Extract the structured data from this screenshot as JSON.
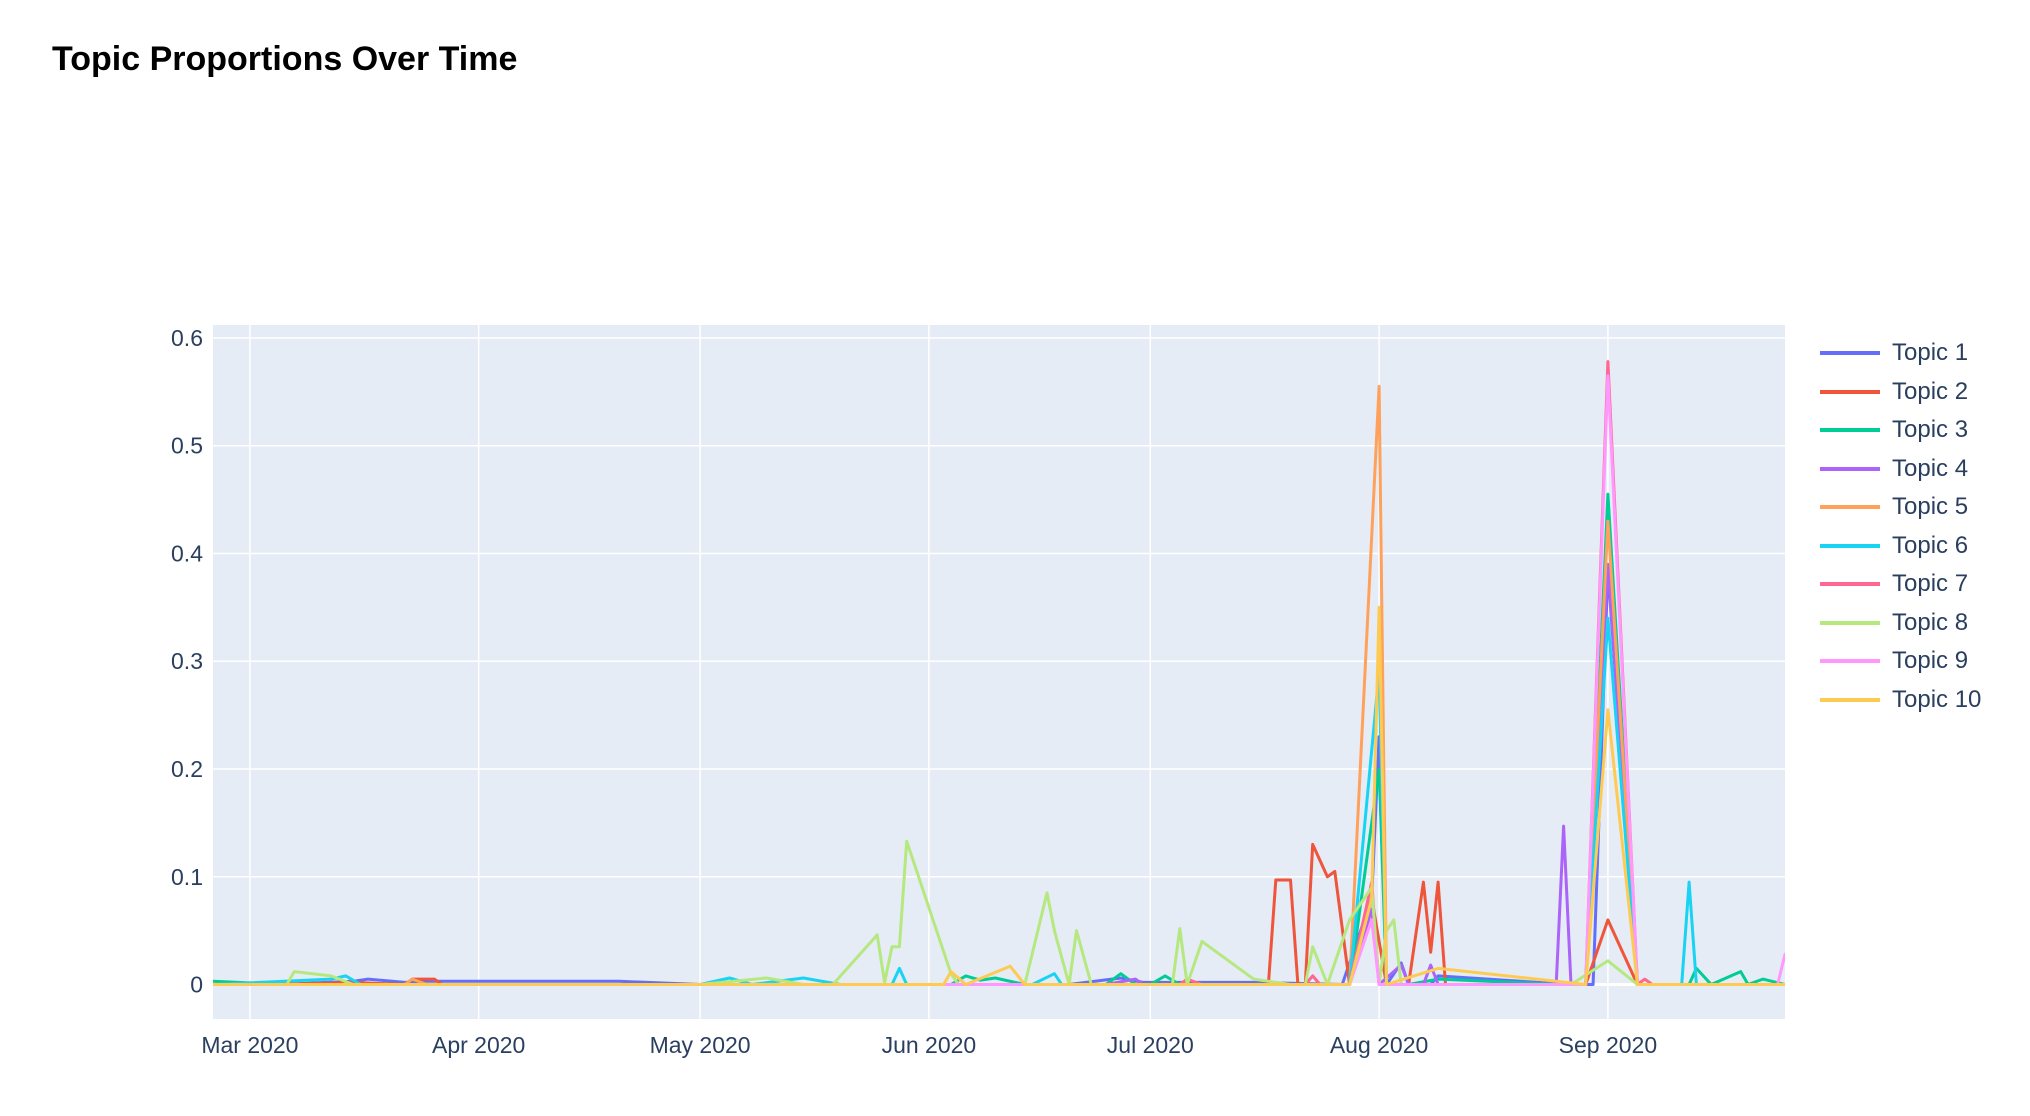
{
  "chart_data": {
    "type": "line",
    "title": "Topic Proportions Over Time",
    "xlabel": "",
    "ylabel": "",
    "xlim": [
      "2020-02-25",
      "2020-09-25"
    ],
    "ylim": [
      -0.032,
      0.612
    ],
    "x_ticks": [
      {
        "date": "2020-03-01",
        "label": "Mar 2020"
      },
      {
        "date": "2020-04-01",
        "label": "Apr 2020"
      },
      {
        "date": "2020-05-01",
        "label": "May 2020"
      },
      {
        "date": "2020-06-01",
        "label": "Jun 2020"
      },
      {
        "date": "2020-07-01",
        "label": "Jul 2020"
      },
      {
        "date": "2020-08-01",
        "label": "Aug 2020"
      },
      {
        "date": "2020-09-01",
        "label": "Sep 2020"
      }
    ],
    "y_ticks": [
      0,
      0.1,
      0.2,
      0.3,
      0.4,
      0.5,
      0.6
    ],
    "y_tick_labels": [
      "0",
      "0.1",
      "0.2",
      "0.3",
      "0.4",
      "0.5",
      "0.6"
    ],
    "grid": true,
    "legend_position": "right",
    "plot_bgcolor": "#E5ECF6",
    "series": [
      {
        "name": "Topic 1",
        "color": "#636EFA",
        "points": [
          [
            "2020-02-25",
            0.0
          ],
          [
            "2020-03-05",
            0.0
          ],
          [
            "2020-03-15",
            0.003
          ],
          [
            "2020-03-17",
            0.005
          ],
          [
            "2020-03-22",
            0.002
          ],
          [
            "2020-03-25",
            0.003
          ],
          [
            "2020-04-20",
            0.003
          ],
          [
            "2020-05-01",
            0.0
          ],
          [
            "2020-06-04",
            0.0
          ],
          [
            "2020-06-20",
            0.0
          ],
          [
            "2020-06-27",
            0.006
          ],
          [
            "2020-06-30",
            0.002
          ],
          [
            "2020-07-15",
            0.002
          ],
          [
            "2020-07-27",
            0.0
          ],
          [
            "2020-07-31",
            0.08
          ],
          [
            "2020-08-01",
            0.23
          ],
          [
            "2020-08-02",
            0.0
          ],
          [
            "2020-08-04",
            0.02
          ],
          [
            "2020-08-05",
            0.0
          ],
          [
            "2020-08-08",
            0.0
          ],
          [
            "2020-08-09",
            0.008
          ],
          [
            "2020-08-27",
            0.0
          ],
          [
            "2020-08-30",
            0.0
          ],
          [
            "2020-09-01",
            0.385
          ],
          [
            "2020-09-05",
            0.0
          ],
          [
            "2020-09-25",
            0.0
          ]
        ]
      },
      {
        "name": "Topic 2",
        "color": "#EF553B",
        "points": [
          [
            "2020-02-25",
            0.0
          ],
          [
            "2020-03-05",
            0.0
          ],
          [
            "2020-03-15",
            0.002
          ],
          [
            "2020-03-22",
            0.0
          ],
          [
            "2020-03-23",
            0.005
          ],
          [
            "2020-03-26",
            0.005
          ],
          [
            "2020-03-27",
            0.0
          ],
          [
            "2020-06-30",
            0.0
          ],
          [
            "2020-07-17",
            0.0
          ],
          [
            "2020-07-18",
            0.097
          ],
          [
            "2020-07-20",
            0.097
          ],
          [
            "2020-07-21",
            0.0
          ],
          [
            "2020-07-22",
            0.0
          ],
          [
            "2020-07-23",
            0.13
          ],
          [
            "2020-07-25",
            0.1
          ],
          [
            "2020-07-26",
            0.105
          ],
          [
            "2020-07-28",
            0.0
          ],
          [
            "2020-07-31",
            0.08
          ],
          [
            "2020-08-02",
            0.0
          ],
          [
            "2020-08-05",
            0.0
          ],
          [
            "2020-08-07",
            0.095
          ],
          [
            "2020-08-08",
            0.03
          ],
          [
            "2020-08-09",
            0.095
          ],
          [
            "2020-08-10",
            0.0
          ],
          [
            "2020-08-27",
            0.0
          ],
          [
            "2020-08-29",
            0.0
          ],
          [
            "2020-09-01",
            0.06
          ],
          [
            "2020-09-05",
            0.0
          ],
          [
            "2020-09-25",
            0.0
          ]
        ]
      },
      {
        "name": "Topic 3",
        "color": "#00CC96",
        "points": [
          [
            "2020-02-25",
            0.003
          ],
          [
            "2020-03-06",
            0.0
          ],
          [
            "2020-05-01",
            0.0
          ],
          [
            "2020-06-04",
            0.0
          ],
          [
            "2020-06-06",
            0.008
          ],
          [
            "2020-06-08",
            0.004
          ],
          [
            "2020-06-10",
            0.006
          ],
          [
            "2020-06-14",
            0.0
          ],
          [
            "2020-06-25",
            0.0
          ],
          [
            "2020-06-27",
            0.01
          ],
          [
            "2020-06-29",
            0.0
          ],
          [
            "2020-07-01",
            0.0
          ],
          [
            "2020-07-03",
            0.008
          ],
          [
            "2020-07-05",
            0.0
          ],
          [
            "2020-07-28",
            0.0
          ],
          [
            "2020-08-01",
            0.2
          ],
          [
            "2020-08-02",
            0.0
          ],
          [
            "2020-08-05",
            0.0
          ],
          [
            "2020-08-09",
            0.005
          ],
          [
            "2020-08-26",
            0.0
          ],
          [
            "2020-08-29",
            0.0
          ],
          [
            "2020-09-01",
            0.455
          ],
          [
            "2020-09-05",
            0.0
          ],
          [
            "2020-09-12",
            0.0
          ],
          [
            "2020-09-13",
            0.015
          ],
          [
            "2020-09-15",
            0.0
          ],
          [
            "2020-09-19",
            0.012
          ],
          [
            "2020-09-20",
            0.0
          ],
          [
            "2020-09-22",
            0.005
          ],
          [
            "2020-09-25",
            0.0
          ]
        ]
      },
      {
        "name": "Topic 4",
        "color": "#AB63FA",
        "points": [
          [
            "2020-02-25",
            0.0
          ],
          [
            "2020-06-25",
            0.0
          ],
          [
            "2020-06-29",
            0.005
          ],
          [
            "2020-06-30",
            0.0
          ],
          [
            "2020-07-28",
            0.0
          ],
          [
            "2020-07-31",
            0.07
          ],
          [
            "2020-08-01",
            0.0
          ],
          [
            "2020-08-04",
            0.018
          ],
          [
            "2020-08-05",
            0.0
          ],
          [
            "2020-08-07",
            0.0
          ],
          [
            "2020-08-08",
            0.018
          ],
          [
            "2020-08-09",
            0.0
          ],
          [
            "2020-08-25",
            0.0
          ],
          [
            "2020-08-26",
            0.147
          ],
          [
            "2020-08-27",
            0.0
          ],
          [
            "2020-08-29",
            0.0
          ],
          [
            "2020-09-01",
            0.39
          ],
          [
            "2020-09-05",
            0.0
          ],
          [
            "2020-09-25",
            0.0
          ]
        ]
      },
      {
        "name": "Topic 5",
        "color": "#FFA15A",
        "points": [
          [
            "2020-02-25",
            0.0
          ],
          [
            "2020-03-22",
            0.0
          ],
          [
            "2020-03-23",
            0.005
          ],
          [
            "2020-03-25",
            0.0
          ],
          [
            "2020-07-28",
            0.0
          ],
          [
            "2020-08-01",
            0.555
          ],
          [
            "2020-08-02",
            0.0
          ],
          [
            "2020-08-29",
            0.0
          ],
          [
            "2020-09-01",
            0.43
          ],
          [
            "2020-09-05",
            0.0
          ],
          [
            "2020-09-25",
            0.0
          ]
        ]
      },
      {
        "name": "Topic 6",
        "color": "#19D3F3",
        "points": [
          [
            "2020-02-25",
            0.0
          ],
          [
            "2020-03-12",
            0.005
          ],
          [
            "2020-03-14",
            0.008
          ],
          [
            "2020-03-16",
            0.0
          ],
          [
            "2020-05-01",
            0.0
          ],
          [
            "2020-05-05",
            0.006
          ],
          [
            "2020-05-08",
            0.0
          ],
          [
            "2020-05-15",
            0.006
          ],
          [
            "2020-05-20",
            0.0
          ],
          [
            "2020-05-27",
            0.0
          ],
          [
            "2020-05-28",
            0.015
          ],
          [
            "2020-05-29",
            0.0
          ],
          [
            "2020-06-15",
            0.0
          ],
          [
            "2020-06-18",
            0.01
          ],
          [
            "2020-06-19",
            0.0
          ],
          [
            "2020-07-28",
            0.0
          ],
          [
            "2020-08-01",
            0.29
          ],
          [
            "2020-08-02",
            0.0
          ],
          [
            "2020-08-29",
            0.0
          ],
          [
            "2020-09-01",
            0.34
          ],
          [
            "2020-09-05",
            0.0
          ],
          [
            "2020-09-11",
            0.0
          ],
          [
            "2020-09-12",
            0.095
          ],
          [
            "2020-09-13",
            0.0
          ],
          [
            "2020-09-25",
            0.0
          ]
        ]
      },
      {
        "name": "Topic 7",
        "color": "#FF6692",
        "points": [
          [
            "2020-02-25",
            0.0
          ],
          [
            "2020-07-05",
            0.0
          ],
          [
            "2020-07-06",
            0.005
          ],
          [
            "2020-07-08",
            0.0
          ],
          [
            "2020-07-22",
            0.0
          ],
          [
            "2020-07-23",
            0.008
          ],
          [
            "2020-07-24",
            0.0
          ],
          [
            "2020-07-28",
            0.0
          ],
          [
            "2020-07-31",
            0.095
          ],
          [
            "2020-08-01",
            0.0
          ],
          [
            "2020-08-29",
            0.0
          ],
          [
            "2020-09-01",
            0.578
          ],
          [
            "2020-09-05",
            0.0
          ],
          [
            "2020-09-06",
            0.005
          ],
          [
            "2020-09-07",
            0.0
          ],
          [
            "2020-09-25",
            0.0
          ]
        ]
      },
      {
        "name": "Topic 8",
        "color": "#B6E880",
        "points": [
          [
            "2020-02-25",
            0.0
          ],
          [
            "2020-03-06",
            0.0
          ],
          [
            "2020-03-07",
            0.012
          ],
          [
            "2020-03-12",
            0.008
          ],
          [
            "2020-03-15",
            0.0
          ],
          [
            "2020-05-01",
            0.0
          ],
          [
            "2020-05-10",
            0.006
          ],
          [
            "2020-05-15",
            0.0
          ],
          [
            "2020-05-19",
            0.0
          ],
          [
            "2020-05-25",
            0.046
          ],
          [
            "2020-05-26",
            0.002
          ],
          [
            "2020-05-27",
            0.035
          ],
          [
            "2020-05-28",
            0.035
          ],
          [
            "2020-05-29",
            0.133
          ],
          [
            "2020-06-04",
            0.01
          ],
          [
            "2020-06-05",
            0.0
          ],
          [
            "2020-06-14",
            0.0
          ],
          [
            "2020-06-17",
            0.085
          ],
          [
            "2020-06-18",
            0.05
          ],
          [
            "2020-06-20",
            0.0
          ],
          [
            "2020-06-21",
            0.05
          ],
          [
            "2020-06-23",
            0.0
          ],
          [
            "2020-07-04",
            0.0
          ],
          [
            "2020-07-05",
            0.052
          ],
          [
            "2020-07-06",
            0.0
          ],
          [
            "2020-07-08",
            0.04
          ],
          [
            "2020-07-15",
            0.005
          ],
          [
            "2020-07-20",
            0.0
          ],
          [
            "2020-07-22",
            0.0
          ],
          [
            "2020-07-23",
            0.035
          ],
          [
            "2020-07-25",
            0.0
          ],
          [
            "2020-07-28",
            0.06
          ],
          [
            "2020-07-31",
            0.09
          ],
          [
            "2020-08-01",
            0.0
          ],
          [
            "2020-08-02",
            0.05
          ],
          [
            "2020-08-03",
            0.06
          ],
          [
            "2020-08-04",
            0.0
          ],
          [
            "2020-08-25",
            0.0
          ],
          [
            "2020-08-27",
            0.0
          ],
          [
            "2020-09-01",
            0.022
          ],
          [
            "2020-09-05",
            0.0
          ],
          [
            "2020-09-25",
            0.0
          ]
        ]
      },
      {
        "name": "Topic 9",
        "color": "#FF97FF",
        "points": [
          [
            "2020-02-25",
            0.0
          ],
          [
            "2020-07-28",
            0.0
          ],
          [
            "2020-07-31",
            0.06
          ],
          [
            "2020-08-01",
            0.0
          ],
          [
            "2020-08-29",
            0.0
          ],
          [
            "2020-09-01",
            0.565
          ],
          [
            "2020-09-05",
            0.0
          ],
          [
            "2020-09-24",
            0.0
          ],
          [
            "2020-09-25",
            0.028
          ],
          [
            "2020-09-26",
            0.0
          ]
        ]
      },
      {
        "name": "Topic 10",
        "color": "#FECB52",
        "points": [
          [
            "2020-02-25",
            0.0
          ],
          [
            "2020-06-03",
            0.0
          ],
          [
            "2020-06-04",
            0.012
          ],
          [
            "2020-06-06",
            0.0
          ],
          [
            "2020-06-12",
            0.017
          ],
          [
            "2020-06-14",
            0.0
          ],
          [
            "2020-07-28",
            0.0
          ],
          [
            "2020-07-31",
            0.08
          ],
          [
            "2020-08-01",
            0.35
          ],
          [
            "2020-08-02",
            0.0
          ],
          [
            "2020-08-09",
            0.015
          ],
          [
            "2020-08-29",
            0.0
          ],
          [
            "2020-09-01",
            0.255
          ],
          [
            "2020-09-05",
            0.0
          ],
          [
            "2020-09-25",
            0.0
          ]
        ]
      }
    ]
  }
}
